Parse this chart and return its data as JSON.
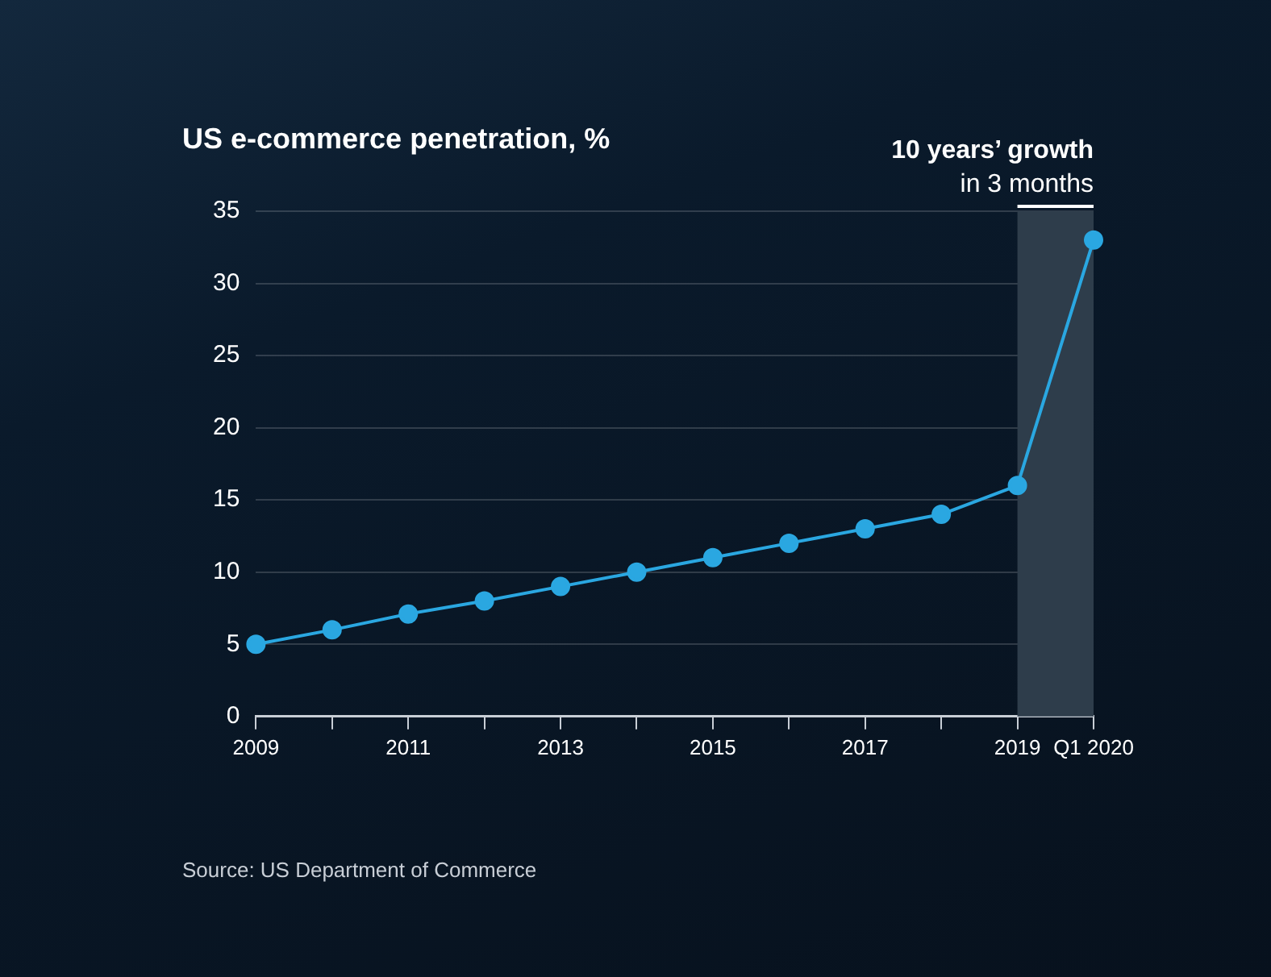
{
  "chart_data": {
    "type": "line",
    "title": "US e-commerce penetration, %",
    "categories": [
      "2009",
      null,
      "2011",
      null,
      "2013",
      null,
      "2015",
      null,
      "2017",
      null,
      "2019",
      "Q1 2020"
    ],
    "series": [
      {
        "color": "#2aa7e1",
        "values": [
          5,
          6,
          7.1,
          8,
          9,
          10,
          11,
          12,
          13,
          14,
          16,
          33
        ]
      }
    ],
    "ylim": [
      0,
      35
    ],
    "yticks": [
      0,
      5,
      10,
      15,
      20,
      25,
      30,
      35
    ],
    "grid": "y",
    "legend": false,
    "marker": "circle",
    "line_style": "solid",
    "bands": [
      {
        "axis": "x",
        "from": "2019",
        "to": "Q1 2020",
        "label": "10 years’ growth in 3 months",
        "color": "#2e3d4b"
      }
    ],
    "annotations": [
      "Source: US Department of Commerce"
    ]
  }
}
